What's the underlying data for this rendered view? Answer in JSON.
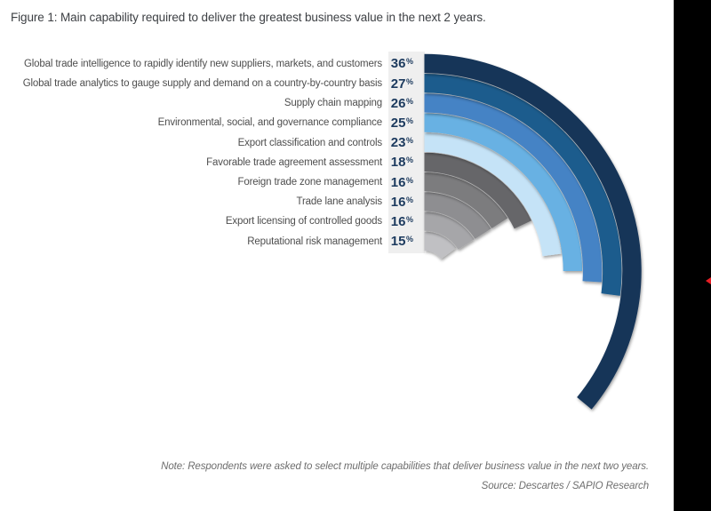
{
  "title": "Figure 1: Main capability required to deliver the greatest business value in the next 2 years.",
  "chart_data": {
    "type": "radial-bar",
    "unit": "%",
    "start_angle_deg": -90,
    "degrees_per_percent": 3.6,
    "sweep_direction": "clockwise",
    "categories": [
      "Global trade intelligence to rapidly identify new suppliers, markets, and customers",
      "Global trade analytics to gauge supply and demand on a country-by-country basis",
      "Supply chain mapping",
      "Environmental, social, and governance compliance",
      "Export classification and controls",
      "Favorable trade agreement assessment",
      "Foreign trade zone management",
      "Trade lane analysis",
      "Export licensing of controlled goods",
      "Reputational risk management"
    ],
    "values": [
      36,
      27,
      26,
      25,
      23,
      18,
      16,
      16,
      16,
      15
    ],
    "colors": [
      "#153459",
      "#1d5b8d",
      "#4583c5",
      "#68b1e3",
      "#c5e3f7",
      "#666669",
      "#7b7b7e",
      "#8e8e91",
      "#a6a6a9",
      "#c0c0c3"
    ],
    "note": "Note: Respondents were asked to select multiple capabilities that deliver business value in the next two years.",
    "source": "Source: Descartes / SAPIO Research"
  },
  "colors": {
    "title_text": "#3d4044",
    "label_text": "#4e4e4e",
    "value_text": "#1c3a5e",
    "value_band_bg": "#efefef",
    "note_text": "#6e6e6e",
    "right_strip_bg": "#000000",
    "red_marker": "#e81e25"
  }
}
